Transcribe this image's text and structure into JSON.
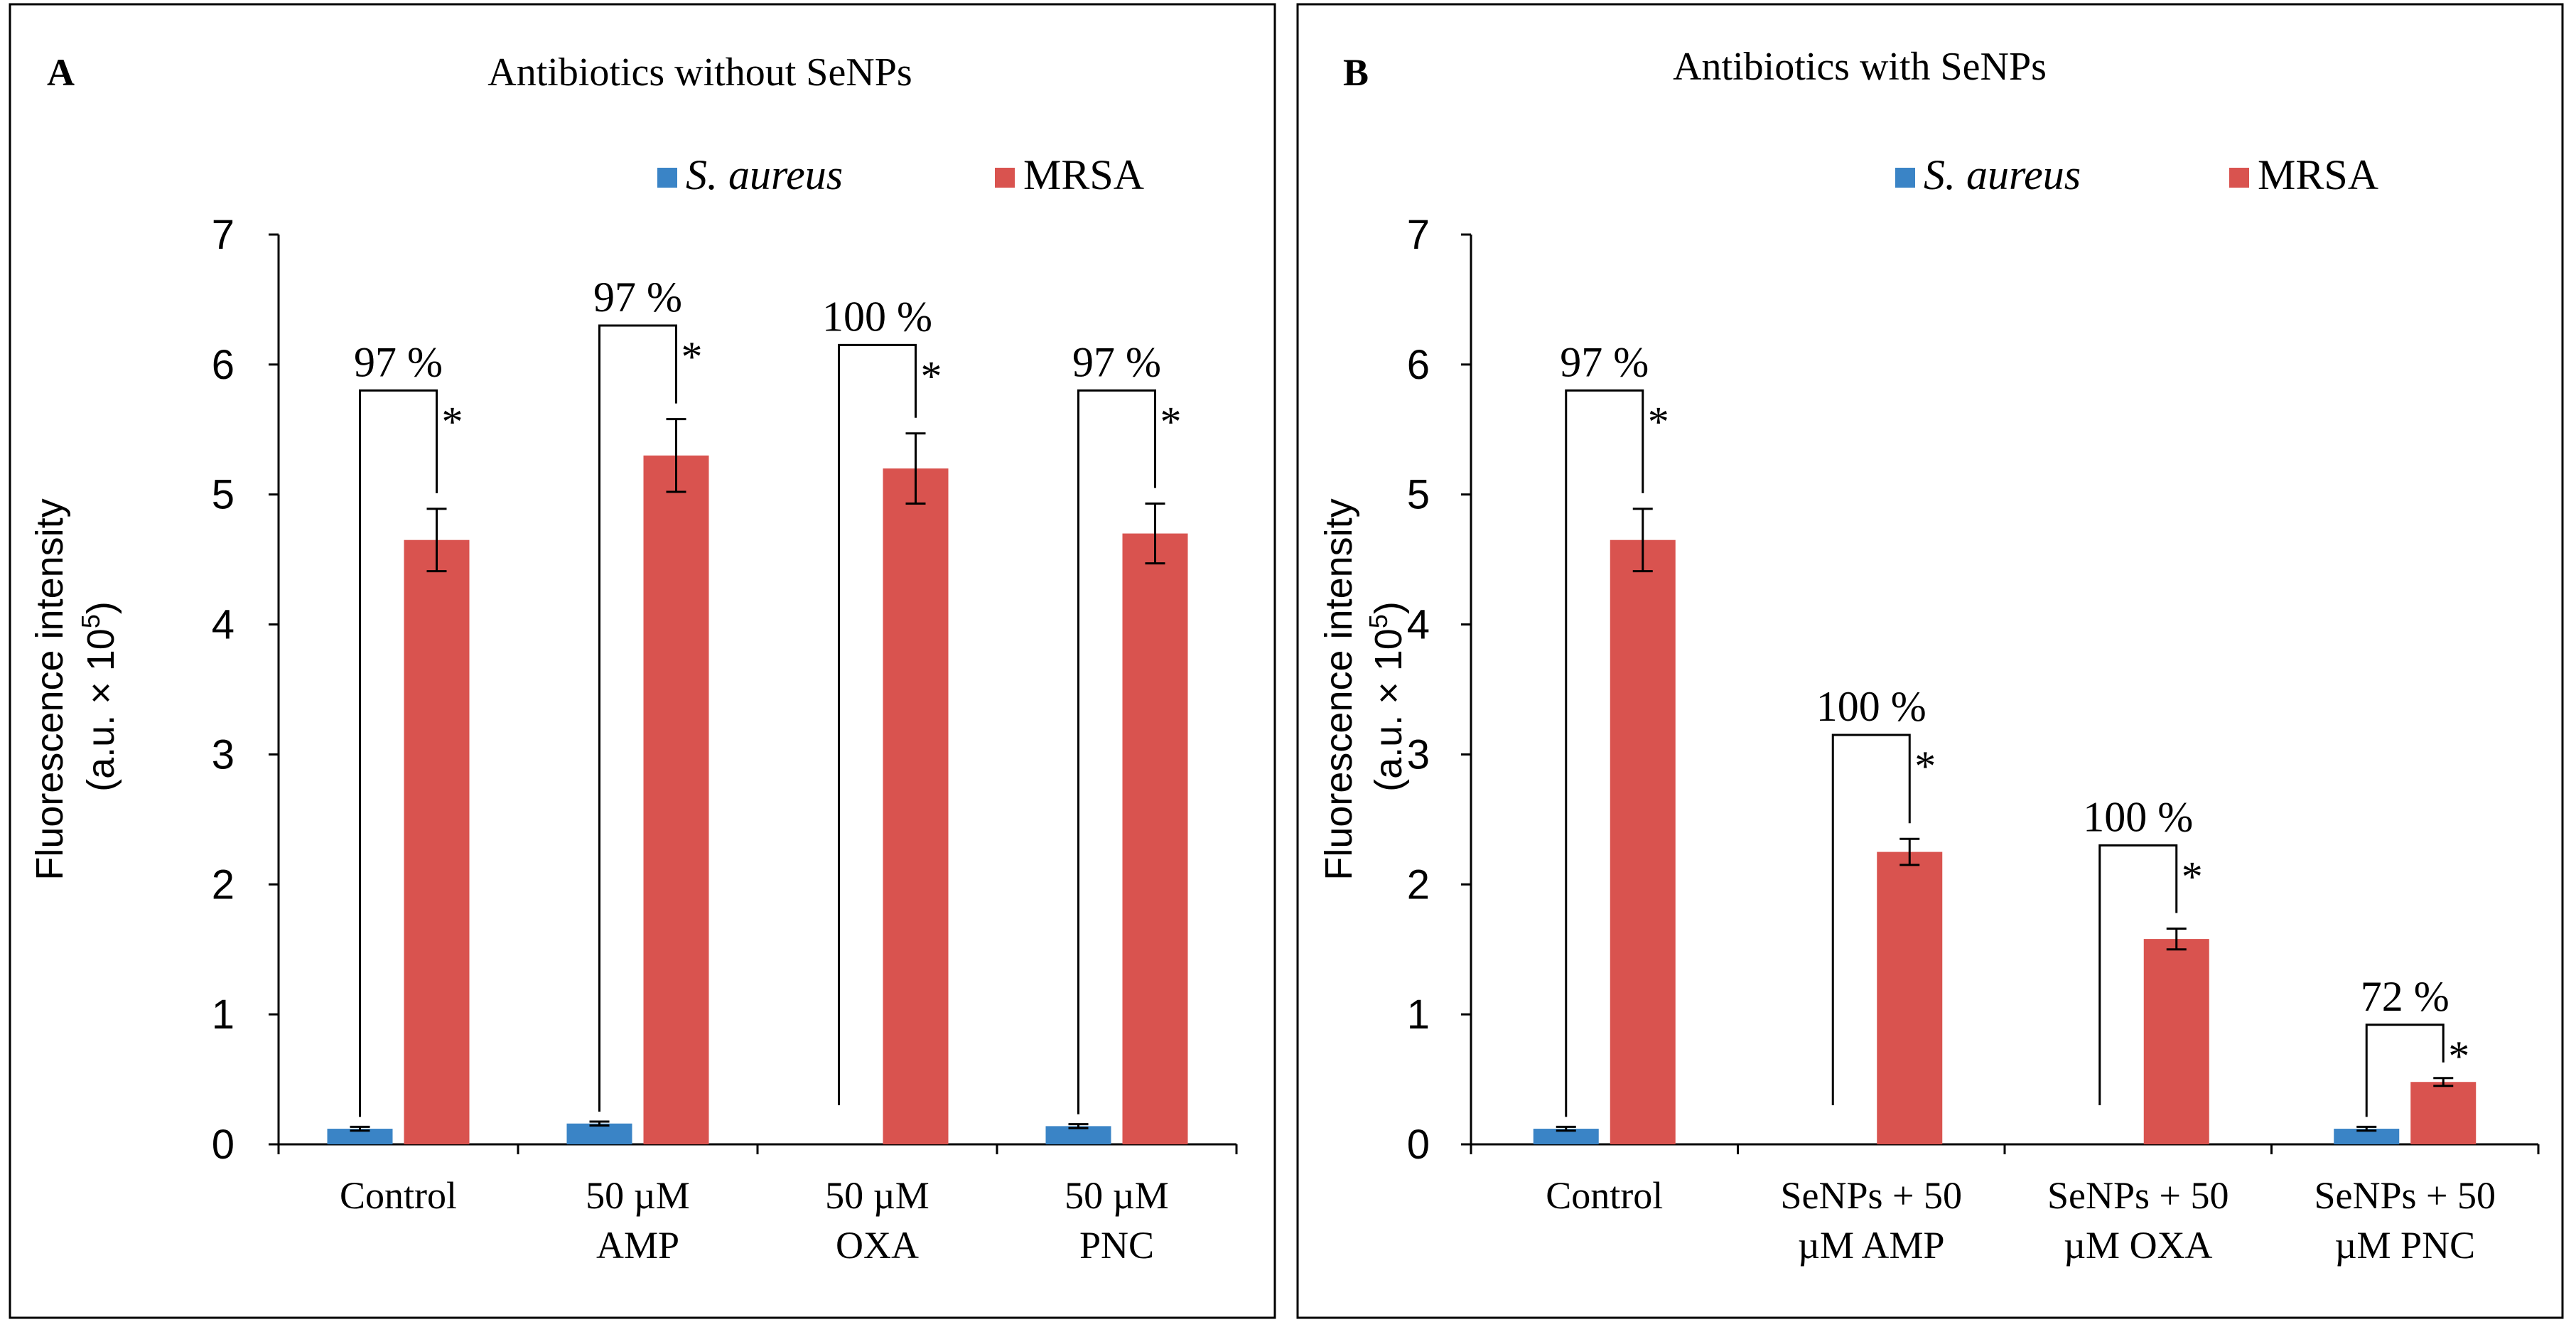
{
  "chart_data": [
    {
      "type": "bar",
      "panel_letter": "A",
      "title": "Antibiotics without SeNPs",
      "ylabel_line1": "Fluorescence intensity",
      "ylabel_line2": "(a.u. × 10",
      "ylabel_sup": "5",
      "ylabel_close": ")",
      "ylim": [
        0,
        7
      ],
      "yticks": [
        0,
        1,
        2,
        3,
        4,
        5,
        6,
        7
      ],
      "categories": [
        [
          "Control"
        ],
        [
          "50 µM",
          "AMP"
        ],
        [
          "50 µM",
          "OXA"
        ],
        [
          "50 µM",
          "PNC"
        ]
      ],
      "series": [
        {
          "name": "S. aureus",
          "italic": true,
          "color": "#3a84c6",
          "values": [
            0.12,
            0.16,
            null,
            0.14
          ],
          "errors": [
            0.015,
            0.015,
            null,
            0.015
          ]
        },
        {
          "name": "MRSA",
          "italic": false,
          "color": "#d9534f",
          "values": [
            4.65,
            5.3,
            5.2,
            4.7
          ],
          "errors": [
            0.24,
            0.28,
            0.27,
            0.23
          ]
        }
      ],
      "annotations": [
        {
          "index": 0,
          "percent": "97 %",
          "star": "*",
          "bracket_top": 5.8
        },
        {
          "index": 1,
          "percent": "97 %",
          "star": "*",
          "bracket_top": 6.3
        },
        {
          "index": 2,
          "percent": "100 %",
          "star": "*",
          "bracket_top": 6.15
        },
        {
          "index": 3,
          "percent": "97 %",
          "star": "*",
          "bracket_top": 5.8
        }
      ]
    },
    {
      "type": "bar",
      "panel_letter": "B",
      "title": "Antibiotics with SeNPs",
      "ylabel_line1": "Fluorescence intensity",
      "ylabel_line2": "(a.u. × 10",
      "ylabel_sup": "5",
      "ylabel_close": ")",
      "ylim": [
        0,
        7
      ],
      "yticks": [
        0,
        1,
        2,
        3,
        4,
        5,
        6,
        7
      ],
      "categories": [
        [
          "Control"
        ],
        [
          "SeNPs + 50",
          "µM AMP"
        ],
        [
          "SeNPs + 50",
          "µM OXA"
        ],
        [
          "SeNPs + 50",
          "µM PNC"
        ]
      ],
      "series": [
        {
          "name": "S. aureus",
          "italic": true,
          "color": "#3a84c6",
          "values": [
            0.12,
            null,
            null,
            0.12
          ],
          "errors": [
            0.015,
            null,
            null,
            0.015
          ]
        },
        {
          "name": "MRSA",
          "italic": false,
          "color": "#d9534f",
          "values": [
            4.65,
            2.25,
            1.58,
            0.48
          ],
          "errors": [
            0.24,
            0.1,
            0.08,
            0.03
          ]
        }
      ],
      "annotations": [
        {
          "index": 0,
          "percent": "97 %",
          "star": "*",
          "bracket_top": 5.8
        },
        {
          "index": 1,
          "percent": "100 %",
          "star": "*",
          "bracket_top": 3.15
        },
        {
          "index": 2,
          "percent": "100 %",
          "star": "*",
          "bracket_top": 2.3
        },
        {
          "index": 3,
          "percent": "72 %",
          "star": "*",
          "bracket_top": 0.92
        }
      ]
    }
  ]
}
